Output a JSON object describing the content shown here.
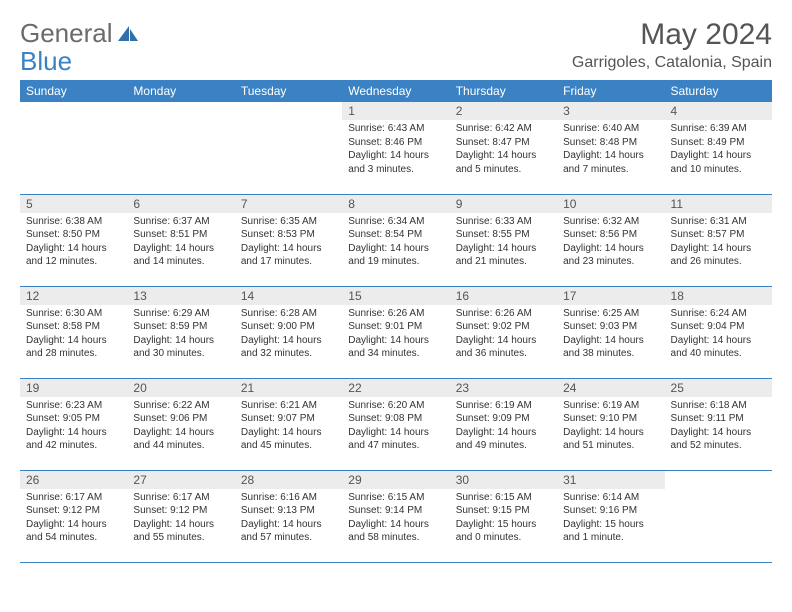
{
  "brand": {
    "part1": "General",
    "part2": "Blue"
  },
  "title": "May 2024",
  "location": "Garrigoles, Catalonia, Spain",
  "colors": {
    "header_bg": "#3b82c4",
    "header_fg": "#ffffff",
    "daynum_bg": "#ececec",
    "text": "#333333",
    "rule": "#3b82c4",
    "logo_gray": "#6b6b6b",
    "logo_blue": "#3b82c4"
  },
  "daysOfWeek": [
    "Sunday",
    "Monday",
    "Tuesday",
    "Wednesday",
    "Thursday",
    "Friday",
    "Saturday"
  ],
  "firstWeekday": 3,
  "daysInMonth": 31,
  "days": {
    "1": {
      "sunrise": "6:43 AM",
      "sunset": "8:46 PM",
      "daylight": "14 hours and 3 minutes."
    },
    "2": {
      "sunrise": "6:42 AM",
      "sunset": "8:47 PM",
      "daylight": "14 hours and 5 minutes."
    },
    "3": {
      "sunrise": "6:40 AM",
      "sunset": "8:48 PM",
      "daylight": "14 hours and 7 minutes."
    },
    "4": {
      "sunrise": "6:39 AM",
      "sunset": "8:49 PM",
      "daylight": "14 hours and 10 minutes."
    },
    "5": {
      "sunrise": "6:38 AM",
      "sunset": "8:50 PM",
      "daylight": "14 hours and 12 minutes."
    },
    "6": {
      "sunrise": "6:37 AM",
      "sunset": "8:51 PM",
      "daylight": "14 hours and 14 minutes."
    },
    "7": {
      "sunrise": "6:35 AM",
      "sunset": "8:53 PM",
      "daylight": "14 hours and 17 minutes."
    },
    "8": {
      "sunrise": "6:34 AM",
      "sunset": "8:54 PM",
      "daylight": "14 hours and 19 minutes."
    },
    "9": {
      "sunrise": "6:33 AM",
      "sunset": "8:55 PM",
      "daylight": "14 hours and 21 minutes."
    },
    "10": {
      "sunrise": "6:32 AM",
      "sunset": "8:56 PM",
      "daylight": "14 hours and 23 minutes."
    },
    "11": {
      "sunrise": "6:31 AM",
      "sunset": "8:57 PM",
      "daylight": "14 hours and 26 minutes."
    },
    "12": {
      "sunrise": "6:30 AM",
      "sunset": "8:58 PM",
      "daylight": "14 hours and 28 minutes."
    },
    "13": {
      "sunrise": "6:29 AM",
      "sunset": "8:59 PM",
      "daylight": "14 hours and 30 minutes."
    },
    "14": {
      "sunrise": "6:28 AM",
      "sunset": "9:00 PM",
      "daylight": "14 hours and 32 minutes."
    },
    "15": {
      "sunrise": "6:26 AM",
      "sunset": "9:01 PM",
      "daylight": "14 hours and 34 minutes."
    },
    "16": {
      "sunrise": "6:26 AM",
      "sunset": "9:02 PM",
      "daylight": "14 hours and 36 minutes."
    },
    "17": {
      "sunrise": "6:25 AM",
      "sunset": "9:03 PM",
      "daylight": "14 hours and 38 minutes."
    },
    "18": {
      "sunrise": "6:24 AM",
      "sunset": "9:04 PM",
      "daylight": "14 hours and 40 minutes."
    },
    "19": {
      "sunrise": "6:23 AM",
      "sunset": "9:05 PM",
      "daylight": "14 hours and 42 minutes."
    },
    "20": {
      "sunrise": "6:22 AM",
      "sunset": "9:06 PM",
      "daylight": "14 hours and 44 minutes."
    },
    "21": {
      "sunrise": "6:21 AM",
      "sunset": "9:07 PM",
      "daylight": "14 hours and 45 minutes."
    },
    "22": {
      "sunrise": "6:20 AM",
      "sunset": "9:08 PM",
      "daylight": "14 hours and 47 minutes."
    },
    "23": {
      "sunrise": "6:19 AM",
      "sunset": "9:09 PM",
      "daylight": "14 hours and 49 minutes."
    },
    "24": {
      "sunrise": "6:19 AM",
      "sunset": "9:10 PM",
      "daylight": "14 hours and 51 minutes."
    },
    "25": {
      "sunrise": "6:18 AM",
      "sunset": "9:11 PM",
      "daylight": "14 hours and 52 minutes."
    },
    "26": {
      "sunrise": "6:17 AM",
      "sunset": "9:12 PM",
      "daylight": "14 hours and 54 minutes."
    },
    "27": {
      "sunrise": "6:17 AM",
      "sunset": "9:12 PM",
      "daylight": "14 hours and 55 minutes."
    },
    "28": {
      "sunrise": "6:16 AM",
      "sunset": "9:13 PM",
      "daylight": "14 hours and 57 minutes."
    },
    "29": {
      "sunrise": "6:15 AM",
      "sunset": "9:14 PM",
      "daylight": "14 hours and 58 minutes."
    },
    "30": {
      "sunrise": "6:15 AM",
      "sunset": "9:15 PM",
      "daylight": "15 hours and 0 minutes."
    },
    "31": {
      "sunrise": "6:14 AM",
      "sunset": "9:16 PM",
      "daylight": "15 hours and 1 minute."
    }
  },
  "labels": {
    "sunrise": "Sunrise:",
    "sunset": "Sunset:",
    "daylight": "Daylight:"
  }
}
